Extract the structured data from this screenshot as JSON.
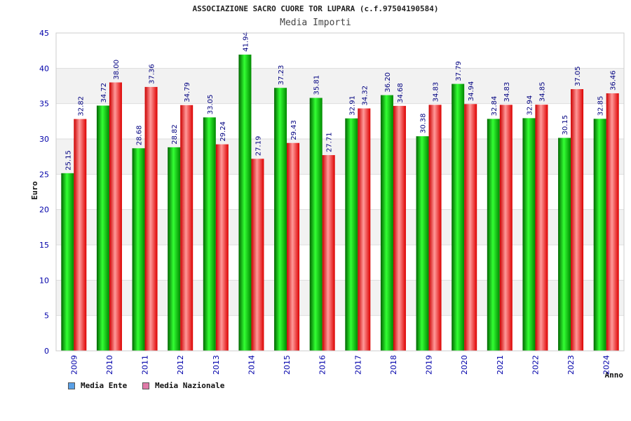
{
  "chart_data": {
    "type": "bar",
    "title": "ASSOCIAZIONE SACRO CUORE TOR LUPARA (c.f.97504190584)",
    "subtitle": "Media Importi",
    "xlabel": "Anno",
    "ylabel": "Euro",
    "ylim": [
      0,
      45
    ],
    "yticks": [
      0,
      5,
      10,
      15,
      20,
      25,
      30,
      35,
      40,
      45
    ],
    "categories": [
      "2009",
      "2010",
      "2011",
      "2012",
      "2013",
      "2014",
      "2015",
      "2016",
      "2017",
      "2018",
      "2019",
      "2020",
      "2021",
      "2022",
      "2023",
      "2024"
    ],
    "series": [
      {
        "name": "Media Ente",
        "color": "#00cc00",
        "legend_color": "#5aa0e6",
        "values": [
          25.15,
          34.72,
          28.68,
          28.82,
          33.05,
          41.94,
          37.23,
          35.81,
          32.91,
          36.2,
          30.38,
          37.79,
          32.84,
          32.94,
          30.15,
          32.85
        ],
        "labels": [
          "25.15",
          "34.72",
          "28.68",
          "28.82",
          "33.05",
          "41.94",
          "37.23",
          "35.81",
          "32.91",
          "36.20",
          "30.38",
          "37.79",
          "32.84",
          "32.94",
          "30.15",
          "32.85"
        ]
      },
      {
        "name": "Media Nazionale",
        "color": "#ee2222",
        "legend_color": "#e07aa8",
        "values": [
          32.82,
          38.0,
          37.36,
          34.79,
          29.24,
          27.19,
          29.43,
          27.71,
          34.32,
          34.68,
          34.83,
          34.94,
          34.83,
          34.85,
          37.05,
          36.46
        ],
        "labels": [
          "32.82",
          "38.00",
          "37.36",
          "34.79",
          "29.24",
          "27.19",
          "29.43",
          "27.71",
          "34.32",
          "34.68",
          "34.83",
          "34.94",
          "34.83",
          "34.85",
          "37.05",
          "36.46"
        ]
      }
    ],
    "grid": true,
    "legend_position": "bottom-left"
  }
}
